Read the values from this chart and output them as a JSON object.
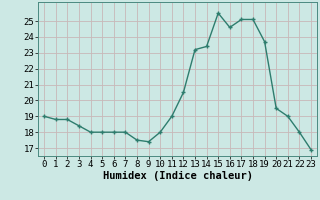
{
  "x": [
    0,
    1,
    2,
    3,
    4,
    5,
    6,
    7,
    8,
    9,
    10,
    11,
    12,
    13,
    14,
    15,
    16,
    17,
    18,
    19,
    20,
    21,
    22,
    23
  ],
  "y": [
    19,
    18.8,
    18.8,
    18.4,
    18,
    18,
    18,
    18,
    17.5,
    17.4,
    18,
    19,
    20.5,
    23.2,
    23.4,
    25.5,
    24.6,
    25.1,
    25.1,
    23.7,
    19.5,
    19,
    18,
    16.9
  ],
  "line_color": "#2e7d6e",
  "marker_color": "#2e7d6e",
  "bg_color": "#cce8e4",
  "grid_color": "#c8b8b8",
  "xlabel": "Humidex (Indice chaleur)",
  "xlim": [
    -0.5,
    23.5
  ],
  "ylim": [
    16.5,
    26.2
  ],
  "yticks": [
    17,
    18,
    19,
    20,
    21,
    22,
    23,
    24,
    25
  ],
  "xticks": [
    0,
    1,
    2,
    3,
    4,
    5,
    6,
    7,
    8,
    9,
    10,
    11,
    12,
    13,
    14,
    15,
    16,
    17,
    18,
    19,
    20,
    21,
    22,
    23
  ],
  "tick_font_size": 6.5,
  "label_font_size": 7.5
}
